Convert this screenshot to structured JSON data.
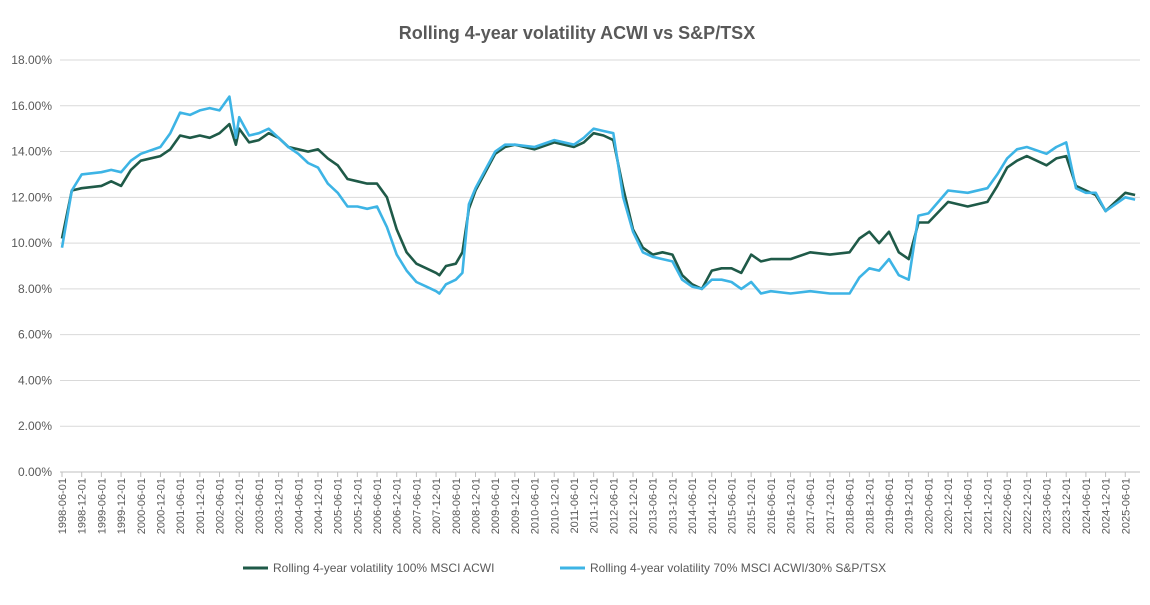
{
  "chart_data": {
    "type": "line",
    "title": "Rolling 4-year volatility ACWI vs S&P/TSX",
    "xlabel": "",
    "ylabel": "",
    "ylim": [
      0,
      18
    ],
    "yticks": [
      "0.00%",
      "2.00%",
      "4.00%",
      "6.00%",
      "8.00%",
      "10.00%",
      "12.00%",
      "14.00%",
      "16.00%",
      "18.00%"
    ],
    "xticks": [
      "1998-06-01",
      "1998-12-01",
      "1999-06-01",
      "1999-12-01",
      "2000-06-01",
      "2000-12-01",
      "2001-06-01",
      "2001-12-01",
      "2002-06-01",
      "2002-12-01",
      "2003-06-01",
      "2003-12-01",
      "2004-06-01",
      "2004-12-01",
      "2005-06-01",
      "2005-12-01",
      "2006-06-01",
      "2006-12-01",
      "2007-06-01",
      "2007-12-01",
      "2008-06-01",
      "2008-12-01",
      "2009-06-01",
      "2009-12-01",
      "2010-06-01",
      "2010-12-01",
      "2011-06-01",
      "2011-12-01",
      "2012-06-01",
      "2012-12-01",
      "2013-06-01",
      "2013-12-01",
      "2014-06-01",
      "2014-12-01",
      "2015-06-01",
      "2015-12-01",
      "2016-06-01",
      "2016-12-01",
      "2017-06-01",
      "2017-12-01",
      "2018-06-01",
      "2018-12-01",
      "2019-06-01",
      "2019-12-01",
      "2020-06-01",
      "2020-12-01",
      "2021-06-01",
      "2021-12-01",
      "2022-06-01",
      "2022-12-01",
      "2023-06-01",
      "2023-12-01",
      "2024-06-01",
      "2024-12-01",
      "2025-06-01"
    ],
    "grid": true,
    "legend_position": "bottom",
    "x": [
      "1998-06",
      "1998-09",
      "1998-12",
      "1999-06",
      "1999-09",
      "1999-12",
      "2000-03",
      "2000-06",
      "2000-12",
      "2001-03",
      "2001-06",
      "2001-09",
      "2001-12",
      "2002-03",
      "2002-06",
      "2002-09",
      "2002-11",
      "2002-12",
      "2003-03",
      "2003-06",
      "2003-09",
      "2003-12",
      "2004-03",
      "2004-06",
      "2004-09",
      "2004-12",
      "2005-03",
      "2005-06",
      "2005-09",
      "2005-12",
      "2006-03",
      "2006-06",
      "2006-09",
      "2006-12",
      "2007-03",
      "2007-06",
      "2007-09",
      "2007-12",
      "2008-01",
      "2008-03",
      "2008-06",
      "2008-08",
      "2008-10",
      "2008-12",
      "2009-03",
      "2009-06",
      "2009-09",
      "2009-12",
      "2010-06",
      "2010-12",
      "2011-06",
      "2011-09",
      "2011-12",
      "2012-03",
      "2012-06",
      "2012-09",
      "2012-12",
      "2013-03",
      "2013-06",
      "2013-09",
      "2013-12",
      "2014-03",
      "2014-06",
      "2014-09",
      "2014-12",
      "2015-03",
      "2015-06",
      "2015-09",
      "2015-12",
      "2016-03",
      "2016-06",
      "2016-12",
      "2017-06",
      "2017-12",
      "2018-06",
      "2018-09",
      "2018-12",
      "2019-03",
      "2019-06",
      "2019-09",
      "2019-12",
      "2020-03",
      "2020-06",
      "2020-12",
      "2021-06",
      "2021-12",
      "2022-03",
      "2022-06",
      "2022-09",
      "2022-12",
      "2023-06",
      "2023-09",
      "2023-12",
      "2024-03",
      "2024-06",
      "2024-09",
      "2024-12",
      "2025-03",
      "2025-06",
      "2025-09"
    ],
    "series": [
      {
        "name": "Rolling 4-year volatility 100% MSCI ACWI",
        "color": "#1f5a48",
        "values": [
          10.2,
          12.3,
          12.4,
          12.5,
          12.7,
          12.5,
          13.2,
          13.6,
          13.8,
          14.1,
          14.7,
          14.6,
          14.7,
          14.6,
          14.8,
          15.2,
          14.3,
          15.0,
          14.4,
          14.5,
          14.8,
          14.6,
          14.2,
          14.1,
          14.0,
          14.1,
          13.7,
          13.4,
          12.8,
          12.7,
          12.6,
          12.6,
          12.0,
          10.6,
          9.6,
          9.1,
          8.9,
          8.7,
          8.6,
          9.0,
          9.1,
          9.6,
          11.5,
          12.3,
          13.1,
          13.9,
          14.2,
          14.3,
          14.1,
          14.4,
          14.2,
          14.4,
          14.8,
          14.7,
          14.5,
          12.4,
          10.6,
          9.8,
          9.5,
          9.6,
          9.5,
          8.6,
          8.2,
          8.0,
          8.8,
          8.9,
          8.9,
          8.7,
          9.5,
          9.2,
          9.3,
          9.3,
          9.6,
          9.5,
          9.6,
          10.2,
          10.5,
          10.0,
          10.5,
          9.6,
          9.3,
          10.9,
          10.9,
          11.8,
          11.6,
          11.8,
          12.5,
          13.3,
          13.6,
          13.8,
          13.4,
          13.7,
          13.8,
          12.5,
          12.3,
          12.1,
          11.4,
          11.8,
          12.2,
          12.1
        ]
      },
      {
        "name": "Rolling 4-year volatility 70% MSCI ACWI/30% S&P/TSX",
        "color": "#3db4e5",
        "values": [
          9.8,
          12.3,
          13.0,
          13.1,
          13.2,
          13.1,
          13.6,
          13.9,
          14.2,
          14.8,
          15.7,
          15.6,
          15.8,
          15.9,
          15.8,
          16.4,
          14.6,
          15.5,
          14.7,
          14.8,
          15.0,
          14.6,
          14.2,
          13.9,
          13.5,
          13.3,
          12.6,
          12.2,
          11.6,
          11.6,
          11.5,
          11.6,
          10.7,
          9.5,
          8.8,
          8.3,
          8.1,
          7.9,
          7.8,
          8.2,
          8.4,
          8.7,
          11.7,
          12.4,
          13.2,
          14.0,
          14.3,
          14.3,
          14.2,
          14.5,
          14.3,
          14.6,
          15.0,
          14.9,
          14.8,
          12.0,
          10.5,
          9.6,
          9.4,
          9.3,
          9.2,
          8.4,
          8.1,
          8.0,
          8.4,
          8.4,
          8.3,
          8.0,
          8.3,
          7.8,
          7.9,
          7.8,
          7.9,
          7.8,
          7.8,
          8.5,
          8.9,
          8.8,
          9.3,
          8.6,
          8.4,
          11.2,
          11.3,
          12.3,
          12.2,
          12.4,
          13.0,
          13.7,
          14.1,
          14.2,
          13.9,
          14.2,
          14.4,
          12.4,
          12.2,
          12.2,
          11.4,
          11.7,
          12.0,
          11.9
        ]
      }
    ]
  }
}
